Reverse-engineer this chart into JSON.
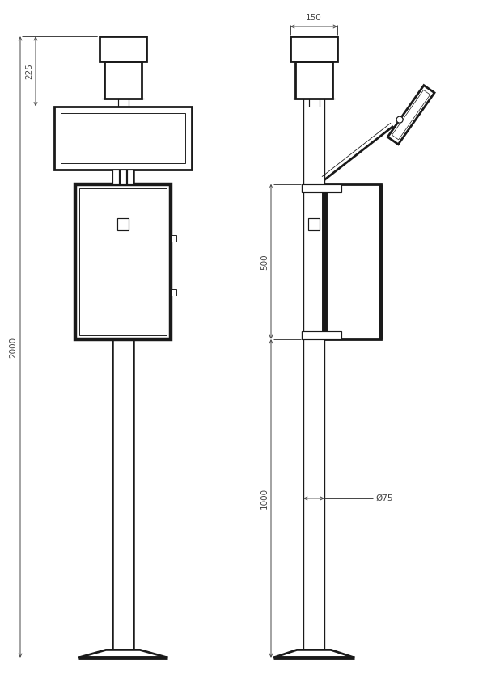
{
  "bg_color": "white",
  "line_color": "#1a1a1a",
  "dim_color": "#444444",
  "lw_thick": 2.0,
  "lw_thin": 0.85,
  "lw_dim": 0.7,
  "fig_w": 6.02,
  "fig_h": 8.64,
  "annotations": {
    "dim_225": "225",
    "dim_2000": "2000",
    "dim_150": "150",
    "dim_500": "500",
    "dim_1000": "1000",
    "dim_75": "Ø75"
  }
}
